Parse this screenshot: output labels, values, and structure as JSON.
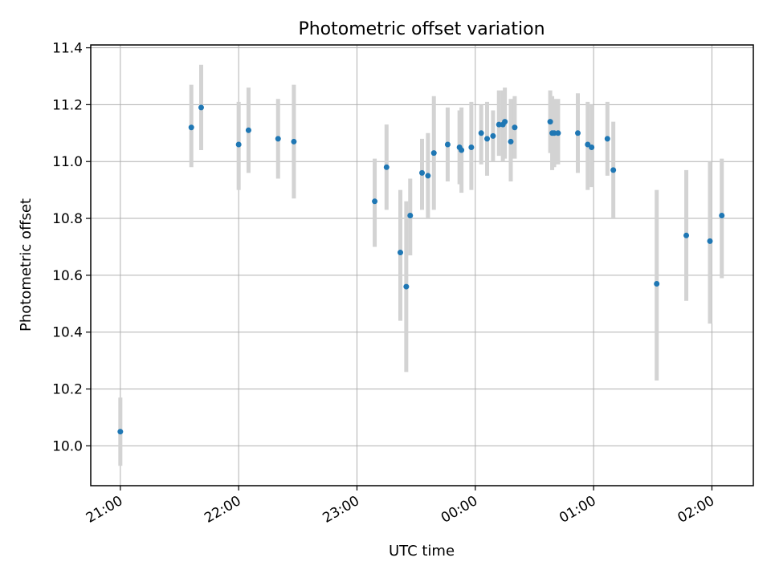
{
  "chart_data": {
    "type": "scatter",
    "title": "Photometric offset variation",
    "xlabel": "UTC time",
    "ylabel": "Photometric offset",
    "x_unit": "UTC time",
    "xlim": [
      "20:45",
      "02:21"
    ],
    "ylim": [
      9.86,
      11.41
    ],
    "x_ticks": [
      "21:00",
      "22:00",
      "23:00",
      "00:00",
      "01:00",
      "02:00"
    ],
    "y_ticks": [
      "10.0",
      "10.2",
      "10.4",
      "10.6",
      "10.8",
      "11.0",
      "11.2",
      "11.4"
    ],
    "y_tick_values": [
      10.0,
      10.2,
      10.4,
      10.6,
      10.8,
      11.0,
      11.2,
      11.4
    ],
    "grid": true,
    "colors": {
      "point": "#1f77b4",
      "errorbar": "#d3d3d3",
      "grid": "#b0b0b0",
      "axes": "#000000"
    },
    "points": [
      {
        "t": "21:00",
        "y": 10.05,
        "lo": 9.93,
        "hi": 10.17
      },
      {
        "t": "21:36",
        "y": 11.12,
        "lo": 10.98,
        "hi": 11.27
      },
      {
        "t": "21:41",
        "y": 11.19,
        "lo": 11.04,
        "hi": 11.34
      },
      {
        "t": "22:00",
        "y": 11.06,
        "lo": 10.9,
        "hi": 11.21
      },
      {
        "t": "22:05",
        "y": 11.11,
        "lo": 10.96,
        "hi": 11.26
      },
      {
        "t": "22:20",
        "y": 11.08,
        "lo": 10.94,
        "hi": 11.22
      },
      {
        "t": "22:28",
        "y": 11.07,
        "lo": 10.87,
        "hi": 11.27
      },
      {
        "t": "23:09",
        "y": 10.86,
        "lo": 10.7,
        "hi": 11.01
      },
      {
        "t": "23:15",
        "y": 10.98,
        "lo": 10.83,
        "hi": 11.13
      },
      {
        "t": "23:22",
        "y": 10.68,
        "lo": 10.44,
        "hi": 10.9
      },
      {
        "t": "23:25",
        "y": 10.56,
        "lo": 10.26,
        "hi": 10.86
      },
      {
        "t": "23:27",
        "y": 10.81,
        "lo": 10.67,
        "hi": 10.94
      },
      {
        "t": "23:33",
        "y": 10.96,
        "lo": 10.83,
        "hi": 11.08
      },
      {
        "t": "23:36",
        "y": 10.95,
        "lo": 10.8,
        "hi": 11.1
      },
      {
        "t": "23:39",
        "y": 11.03,
        "lo": 10.83,
        "hi": 11.23
      },
      {
        "t": "23:46",
        "y": 11.06,
        "lo": 10.93,
        "hi": 11.19
      },
      {
        "t": "23:52",
        "y": 11.05,
        "lo": 10.92,
        "hi": 11.18
      },
      {
        "t": "23:53",
        "y": 11.04,
        "lo": 10.89,
        "hi": 11.19
      },
      {
        "t": "23:58",
        "y": 11.05,
        "lo": 10.9,
        "hi": 11.21
      },
      {
        "t": "00:03",
        "y": 11.1,
        "lo": 10.99,
        "hi": 11.2
      },
      {
        "t": "00:06",
        "y": 11.08,
        "lo": 10.95,
        "hi": 11.21
      },
      {
        "t": "00:09",
        "y": 11.09,
        "lo": 11.0,
        "hi": 11.18
      },
      {
        "t": "00:12",
        "y": 11.13,
        "lo": 11.02,
        "hi": 11.25
      },
      {
        "t": "00:14",
        "y": 11.13,
        "lo": 11.0,
        "hi": 11.25
      },
      {
        "t": "00:15",
        "y": 11.14,
        "lo": 11.01,
        "hi": 11.26
      },
      {
        "t": "00:18",
        "y": 11.07,
        "lo": 10.93,
        "hi": 11.22
      },
      {
        "t": "00:20",
        "y": 11.12,
        "lo": 11.01,
        "hi": 11.23
      },
      {
        "t": "00:38",
        "y": 11.14,
        "lo": 11.03,
        "hi": 11.25
      },
      {
        "t": "00:39",
        "y": 11.1,
        "lo": 10.97,
        "hi": 11.23
      },
      {
        "t": "00:40",
        "y": 11.1,
        "lo": 10.98,
        "hi": 11.22
      },
      {
        "t": "00:42",
        "y": 11.1,
        "lo": 10.99,
        "hi": 11.22
      },
      {
        "t": "00:52",
        "y": 11.1,
        "lo": 10.96,
        "hi": 11.24
      },
      {
        "t": "00:57",
        "y": 11.06,
        "lo": 10.9,
        "hi": 11.21
      },
      {
        "t": "00:59",
        "y": 11.05,
        "lo": 10.91,
        "hi": 11.2
      },
      {
        "t": "01:07",
        "y": 11.08,
        "lo": 10.95,
        "hi": 11.21
      },
      {
        "t": "01:10",
        "y": 10.97,
        "lo": 10.8,
        "hi": 11.14
      },
      {
        "t": "01:32",
        "y": 10.57,
        "lo": 10.23,
        "hi": 10.9
      },
      {
        "t": "01:47",
        "y": 10.74,
        "lo": 10.51,
        "hi": 10.97
      },
      {
        "t": "01:59",
        "y": 10.72,
        "lo": 10.43,
        "hi": 11.0
      },
      {
        "t": "02:05",
        "y": 10.81,
        "lo": 10.59,
        "hi": 11.01
      }
    ]
  }
}
